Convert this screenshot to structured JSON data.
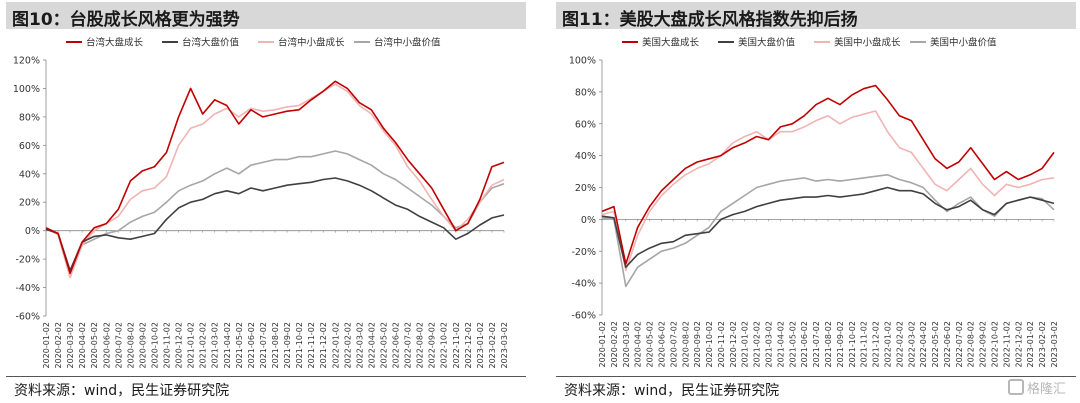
{
  "left": {
    "title": "图10：台股成长风格更为强势",
    "source": "资料来源：wind，民生证券研究院",
    "chart_data": {
      "type": "line",
      "ylim": [
        -0.6,
        1.2
      ],
      "yticks": [
        -0.6,
        -0.4,
        -0.2,
        0,
        0.2,
        0.4,
        0.6,
        0.8,
        1.0,
        1.2
      ],
      "ytick_labels": [
        "-60%",
        "-40%",
        "-20%",
        "0%",
        "20%",
        "40%",
        "60%",
        "80%",
        "100%",
        "120%"
      ],
      "x_labels": [
        "2020-01-02",
        "2020-02-02",
        "2020-03-02",
        "2020-04-02",
        "2020-05-02",
        "2020-06-02",
        "2020-07-02",
        "2020-08-02",
        "2020-09-02",
        "2020-10-02",
        "2020-11-02",
        "2020-12-02",
        "2021-01-02",
        "2021-02-02",
        "2021-03-02",
        "2021-04-02",
        "2021-05-02",
        "2021-06-02",
        "2021-07-02",
        "2021-08-02",
        "2021-09-02",
        "2021-10-02",
        "2021-11-02",
        "2021-12-02",
        "2022-01-02",
        "2022-02-02",
        "2022-03-02",
        "2022-04-02",
        "2022-05-02",
        "2022-06-02",
        "2022-07-02",
        "2022-08-02",
        "2022-09-02",
        "2022-10-02",
        "2022-11-02",
        "2022-12-02",
        "2023-01-02",
        "2023-02-02",
        "2023-03-02"
      ],
      "legend_position": "top",
      "series": [
        {
          "name": "台湾大盘成长",
          "color": "#c00000",
          "dash": "",
          "values": [
            0.02,
            -0.02,
            -0.3,
            -0.08,
            0.02,
            0.05,
            0.15,
            0.35,
            0.42,
            0.45,
            0.55,
            0.8,
            1.0,
            0.82,
            0.92,
            0.88,
            0.75,
            0.85,
            0.8,
            0.82,
            0.84,
            0.85,
            0.92,
            0.98,
            1.05,
            1.0,
            0.9,
            0.85,
            0.72,
            0.62,
            0.5,
            0.4,
            0.3,
            0.15,
            0.0,
            0.05,
            0.22,
            0.45,
            0.48
          ]
        },
        {
          "name": "台湾大盘价值",
          "color": "#404040",
          "dash": "",
          "values": [
            0.01,
            -0.02,
            -0.28,
            -0.08,
            -0.04,
            -0.03,
            -0.05,
            -0.06,
            -0.04,
            -0.02,
            0.08,
            0.16,
            0.2,
            0.22,
            0.26,
            0.28,
            0.26,
            0.3,
            0.28,
            0.3,
            0.32,
            0.33,
            0.34,
            0.36,
            0.37,
            0.35,
            0.32,
            0.28,
            0.23,
            0.18,
            0.15,
            0.1,
            0.06,
            0.02,
            -0.06,
            -0.02,
            0.04,
            0.09,
            0.11
          ]
        },
        {
          "name": "台湾中小盘成长",
          "color": "#f0b4b4",
          "dash": "",
          "values": [
            0.02,
            -0.03,
            -0.33,
            -0.1,
            0.0,
            0.05,
            0.1,
            0.22,
            0.28,
            0.3,
            0.38,
            0.6,
            0.72,
            0.75,
            0.82,
            0.86,
            0.8,
            0.86,
            0.84,
            0.85,
            0.87,
            0.88,
            0.93,
            0.98,
            1.03,
            0.98,
            0.88,
            0.82,
            0.7,
            0.6,
            0.45,
            0.35,
            0.22,
            0.1,
            0.0,
            0.08,
            0.2,
            0.32,
            0.36
          ]
        },
        {
          "name": "台湾中小盘价值",
          "color": "#a6a6a6",
          "dash": "",
          "values": [
            0.01,
            -0.02,
            -0.3,
            -0.1,
            -0.06,
            -0.02,
            0.0,
            0.06,
            0.1,
            0.13,
            0.2,
            0.28,
            0.32,
            0.35,
            0.4,
            0.44,
            0.4,
            0.46,
            0.48,
            0.5,
            0.5,
            0.52,
            0.52,
            0.54,
            0.56,
            0.54,
            0.5,
            0.46,
            0.4,
            0.36,
            0.3,
            0.24,
            0.18,
            0.1,
            0.02,
            0.05,
            0.2,
            0.3,
            0.33
          ]
        }
      ]
    }
  },
  "right": {
    "title": "图11：美股大盘成长风格指数先抑后扬",
    "source": "资料来源：wind，民生证券研究院",
    "chart_data": {
      "type": "line",
      "ylim": [
        -0.6,
        1.0
      ],
      "yticks": [
        -0.6,
        -0.4,
        -0.2,
        0,
        0.2,
        0.4,
        0.6,
        0.8,
        1.0
      ],
      "ytick_labels": [
        "-60%",
        "-40%",
        "-20%",
        "0%",
        "20%",
        "40%",
        "60%",
        "80%",
        "100%"
      ],
      "x_labels": [
        "2020-01-02",
        "2020-02-02",
        "2020-03-02",
        "2020-04-02",
        "2020-05-02",
        "2020-06-02",
        "2020-07-02",
        "2020-08-02",
        "2020-09-02",
        "2020-10-02",
        "2020-11-02",
        "2020-12-02",
        "2021-01-02",
        "2021-02-02",
        "2021-03-02",
        "2021-04-02",
        "2021-05-02",
        "2021-06-02",
        "2021-07-02",
        "2021-08-02",
        "2021-09-02",
        "2021-10-02",
        "2021-11-02",
        "2021-12-02",
        "2022-01-02",
        "2022-02-02",
        "2022-03-02",
        "2022-04-02",
        "2022-05-02",
        "2022-06-02",
        "2022-07-02",
        "2022-08-02",
        "2022-09-02",
        "2022-10-02",
        "2022-11-02",
        "2022-12-02",
        "2023-01-02",
        "2023-02-02",
        "2023-03-02"
      ],
      "legend_position": "top",
      "series": [
        {
          "name": "美国大盘成长",
          "color": "#c00000",
          "dash": "",
          "values": [
            0.05,
            0.08,
            -0.28,
            -0.05,
            0.08,
            0.18,
            0.25,
            0.32,
            0.36,
            0.38,
            0.4,
            0.45,
            0.48,
            0.52,
            0.5,
            0.58,
            0.6,
            0.65,
            0.72,
            0.76,
            0.72,
            0.78,
            0.82,
            0.84,
            0.75,
            0.65,
            0.62,
            0.5,
            0.38,
            0.32,
            0.36,
            0.45,
            0.35,
            0.25,
            0.3,
            0.25,
            0.28,
            0.32,
            0.42
          ]
        },
        {
          "name": "美国大盘价值",
          "color": "#404040",
          "dash": "",
          "values": [
            0.02,
            0.01,
            -0.3,
            -0.22,
            -0.18,
            -0.15,
            -0.14,
            -0.1,
            -0.09,
            -0.08,
            0.0,
            0.03,
            0.05,
            0.08,
            0.1,
            0.12,
            0.13,
            0.14,
            0.14,
            0.15,
            0.14,
            0.15,
            0.16,
            0.18,
            0.2,
            0.18,
            0.18,
            0.16,
            0.1,
            0.06,
            0.08,
            0.12,
            0.06,
            0.03,
            0.1,
            0.12,
            0.14,
            0.12,
            0.1
          ]
        },
        {
          "name": "美国中小盘成长",
          "color": "#f0b4b4",
          "dash": "",
          "values": [
            0.03,
            0.05,
            -0.32,
            -0.1,
            0.05,
            0.15,
            0.22,
            0.28,
            0.32,
            0.35,
            0.4,
            0.48,
            0.52,
            0.55,
            0.5,
            0.55,
            0.55,
            0.58,
            0.62,
            0.65,
            0.6,
            0.64,
            0.66,
            0.68,
            0.55,
            0.45,
            0.42,
            0.32,
            0.22,
            0.18,
            0.25,
            0.32,
            0.22,
            0.15,
            0.22,
            0.2,
            0.22,
            0.25,
            0.26
          ]
        },
        {
          "name": "美国中小盘价值",
          "color": "#a6a6a6",
          "dash": "",
          "values": [
            0.01,
            0.0,
            -0.42,
            -0.3,
            -0.25,
            -0.2,
            -0.18,
            -0.15,
            -0.1,
            -0.05,
            0.05,
            0.1,
            0.15,
            0.2,
            0.22,
            0.24,
            0.25,
            0.26,
            0.24,
            0.25,
            0.24,
            0.25,
            0.26,
            0.27,
            0.28,
            0.25,
            0.23,
            0.2,
            0.12,
            0.05,
            0.1,
            0.14,
            0.06,
            0.02,
            0.1,
            0.12,
            0.14,
            0.13,
            0.06
          ]
        }
      ]
    }
  },
  "watermark": "格隆汇"
}
